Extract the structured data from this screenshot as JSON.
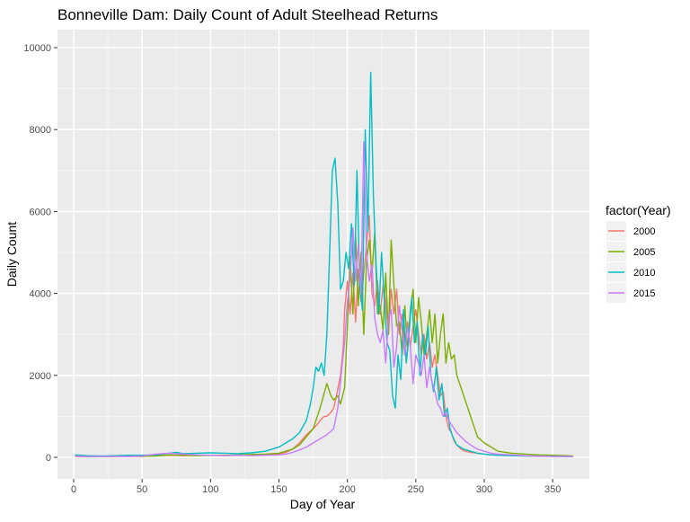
{
  "chart_data": {
    "type": "line",
    "title": "Bonneville Dam: Daily Count of Adult Steelhead Returns",
    "xlabel": "Day of Year",
    "ylabel": "Daily Count",
    "xlim": [
      0,
      365
    ],
    "ylim": [
      0,
      10000
    ],
    "x_ticks": [
      0,
      50,
      100,
      150,
      200,
      250,
      300,
      350
    ],
    "y_ticks": [
      0,
      2000,
      4000,
      6000,
      8000,
      10000
    ],
    "grid": true,
    "legend": {
      "title": "factor(Year)",
      "position": "right"
    },
    "series": [
      {
        "name": "2000",
        "color": "#F8766D",
        "x": [
          1,
          10,
          20,
          30,
          40,
          50,
          60,
          70,
          80,
          90,
          100,
          110,
          120,
          130,
          140,
          150,
          155,
          160,
          165,
          170,
          175,
          178,
          180,
          183,
          185,
          188,
          190,
          192,
          195,
          197,
          198,
          200,
          202,
          204,
          206,
          208,
          210,
          212,
          214,
          216,
          218,
          220,
          222,
          224,
          226,
          228,
          230,
          232,
          234,
          236,
          238,
          240,
          242,
          244,
          246,
          248,
          250,
          252,
          254,
          256,
          258,
          260,
          262,
          264,
          266,
          268,
          270,
          272,
          274,
          276,
          278,
          280,
          283,
          286,
          290,
          295,
          300,
          305,
          310,
          320,
          330,
          340,
          350,
          360,
          365
        ],
        "y": [
          20,
          15,
          20,
          20,
          25,
          20,
          40,
          50,
          40,
          50,
          45,
          50,
          45,
          50,
          60,
          80,
          120,
          200,
          350,
          550,
          700,
          800,
          900,
          1000,
          1000,
          1100,
          1200,
          1500,
          2000,
          2700,
          3600,
          4300,
          3500,
          4500,
          3300,
          4600,
          3800,
          4500,
          5200,
          5900,
          4000,
          3700,
          4300,
          3500,
          4200,
          3800,
          3000,
          4100,
          3500,
          4100,
          3000,
          3500,
          2800,
          3300,
          2700,
          3200,
          3600,
          3000,
          2500,
          3000,
          2400,
          2800,
          2200,
          2500,
          2000,
          1500,
          1600,
          1000,
          700,
          600,
          400,
          300,
          200,
          150,
          120,
          100,
          80,
          60,
          50,
          40,
          30,
          25,
          20,
          20,
          20
        ]
      },
      {
        "name": "2005",
        "color": "#7CAE00",
        "x": [
          1,
          10,
          20,
          30,
          40,
          50,
          60,
          70,
          80,
          90,
          100,
          110,
          120,
          130,
          140,
          150,
          155,
          160,
          165,
          170,
          175,
          180,
          185,
          188,
          190,
          193,
          195,
          198,
          200,
          202,
          204,
          206,
          208,
          210,
          212,
          214,
          216,
          218,
          220,
          222,
          224,
          226,
          228,
          230,
          232,
          234,
          236,
          238,
          240,
          242,
          244,
          246,
          248,
          250,
          252,
          254,
          256,
          258,
          260,
          262,
          264,
          266,
          268,
          270,
          272,
          274,
          276,
          278,
          280,
          283,
          286,
          290,
          295,
          300,
          305,
          310,
          320,
          330,
          340,
          350,
          360,
          365
        ],
        "y": [
          30,
          20,
          25,
          20,
          30,
          25,
          30,
          60,
          50,
          40,
          50,
          45,
          60,
          70,
          80,
          100,
          150,
          200,
          300,
          500,
          700,
          1200,
          1800,
          1500,
          1400,
          1500,
          1300,
          1700,
          3200,
          4900,
          3500,
          5400,
          3700,
          5000,
          3000,
          4800,
          5300,
          4500,
          5500,
          3500,
          3700,
          3100,
          4500,
          3000,
          5300,
          4200,
          3200,
          3300,
          2500,
          3700,
          2600,
          3600,
          4100,
          2800,
          3900,
          3300,
          2500,
          3000,
          3600,
          2800,
          3500,
          2300,
          3000,
          3500,
          2300,
          2800,
          2400,
          2500,
          2000,
          1700,
          1400,
          1000,
          500,
          350,
          250,
          150,
          100,
          80,
          60,
          50,
          40,
          30
        ]
      },
      {
        "name": "2010",
        "color": "#00BFC4",
        "x": [
          1,
          10,
          20,
          30,
          40,
          50,
          60,
          70,
          75,
          80,
          90,
          100,
          110,
          120,
          130,
          140,
          150,
          155,
          160,
          165,
          170,
          173,
          175,
          177,
          179,
          181,
          183,
          185,
          187,
          189,
          191,
          193,
          195,
          197,
          199,
          201,
          203,
          205,
          207,
          209,
          211,
          213,
          215,
          217,
          219,
          221,
          223,
          225,
          227,
          229,
          231,
          233,
          235,
          237,
          239,
          241,
          243,
          245,
          247,
          249,
          251,
          253,
          255,
          257,
          259,
          261,
          263,
          265,
          267,
          269,
          271,
          273,
          275,
          277,
          280,
          285,
          290,
          295,
          300,
          305,
          310,
          320,
          330,
          340,
          350,
          360,
          365
        ],
        "y": [
          60,
          40,
          30,
          40,
          50,
          50,
          60,
          100,
          120,
          90,
          100,
          110,
          100,
          90,
          110,
          150,
          250,
          350,
          450,
          600,
          900,
          1300,
          1700,
          2200,
          2100,
          2300,
          2000,
          3000,
          5000,
          7000,
          7300,
          6200,
          4100,
          4300,
          5000,
          4600,
          5700,
          4200,
          7000,
          4200,
          3600,
          8000,
          5500,
          9400,
          6400,
          4700,
          3500,
          5000,
          3800,
          2800,
          2600,
          1500,
          1200,
          2500,
          1900,
          3600,
          2300,
          3000,
          3900,
          2800,
          3300,
          2000,
          3000,
          2500,
          3200,
          2000,
          1600,
          2200,
          1400,
          1800,
          1000,
          1200,
          700,
          500,
          300,
          200,
          150,
          100,
          80,
          60,
          50,
          40,
          30,
          30,
          25,
          20,
          20
        ]
      },
      {
        "name": "2015",
        "color": "#C77CFF",
        "x": [
          1,
          10,
          20,
          30,
          40,
          50,
          60,
          70,
          80,
          90,
          100,
          110,
          120,
          130,
          140,
          150,
          155,
          160,
          165,
          170,
          175,
          180,
          185,
          190,
          193,
          196,
          198,
          200,
          202,
          204,
          206,
          208,
          210,
          212,
          214,
          216,
          218,
          220,
          222,
          224,
          226,
          228,
          230,
          232,
          234,
          236,
          238,
          240,
          242,
          244,
          246,
          248,
          250,
          252,
          254,
          256,
          258,
          260,
          262,
          264,
          266,
          268,
          270,
          272,
          274,
          276,
          278,
          280,
          283,
          286,
          290,
          295,
          300,
          305,
          310,
          320,
          330,
          340,
          350,
          360,
          365
        ],
        "y": [
          30,
          20,
          20,
          25,
          20,
          30,
          80,
          100,
          80,
          60,
          50,
          40,
          50,
          40,
          50,
          60,
          80,
          120,
          180,
          250,
          350,
          450,
          550,
          700,
          1200,
          2200,
          2800,
          3800,
          4400,
          5600,
          4300,
          5200,
          4000,
          7700,
          5000,
          4300,
          4700,
          3400,
          3000,
          2800,
          3100,
          2300,
          3400,
          3600,
          2200,
          2700,
          3700,
          3100,
          2500,
          3200,
          2700,
          1800,
          2500,
          2300,
          2000,
          2500,
          1700,
          2200,
          1800,
          1600,
          1300,
          1200,
          1000,
          1100,
          900,
          800,
          700,
          600,
          500,
          400,
          300,
          200,
          150,
          100,
          80,
          60,
          40,
          30,
          25,
          20,
          20
        ]
      }
    ]
  }
}
